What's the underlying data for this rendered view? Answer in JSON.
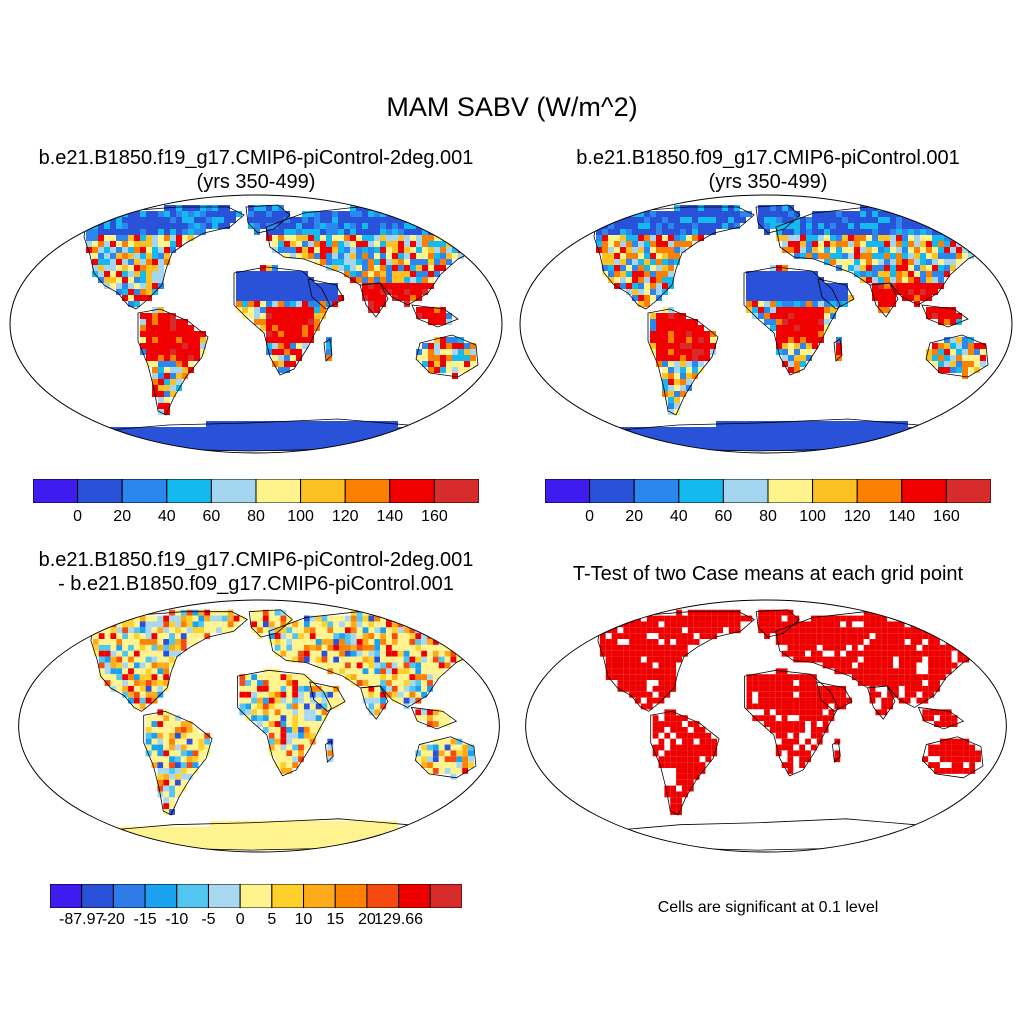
{
  "main_title": "MAM SABV (W/m^2)",
  "panels": {
    "case1": {
      "title_line1": "b.e21.B1850.f19_g17.CMIP6-piControl-2deg.001",
      "title_line2": "(yrs 350-499)"
    },
    "case2": {
      "title_line1": "b.e21.B1850.f09_g17.CMIP6-piControl.001",
      "title_line2": "(yrs 350-499)"
    },
    "diff": {
      "title_line1": "b.e21.B1850.f19_g17.CMIP6-piControl-2deg.001",
      "title_line2": "- b.e21.B1850.f09_g17.CMIP6-piControl.001"
    },
    "ttest": {
      "title_line1": "T-Test of two Case means at each grid point",
      "note": "Cells are significant at 0.1 level"
    }
  },
  "colorbars": {
    "case": {
      "colors": [
        "#3e1cf0",
        "#2a52d8",
        "#2b86ee",
        "#13b9ef",
        "#a5d6f0",
        "#fff38e",
        "#fdc123",
        "#fb7f00",
        "#f00000",
        "#d82b2b"
      ],
      "labels": [
        "0",
        "20",
        "40",
        "60",
        "80",
        "100",
        "120",
        "140",
        "160"
      ]
    },
    "diff": {
      "colors": [
        "#3e1cf0",
        "#2a52d8",
        "#2f7ce8",
        "#1aa1ef",
        "#52c5f0",
        "#a8d8ef",
        "#fff38e",
        "#fdd02a",
        "#fcab1a",
        "#fb8200",
        "#f44a10",
        "#ee0000",
        "#d82b2b"
      ],
      "labels": [
        "-87.97",
        "-20",
        "-15",
        "-10",
        "-5",
        "0",
        "5",
        "10",
        "15",
        "20",
        "129.66"
      ]
    }
  }
}
